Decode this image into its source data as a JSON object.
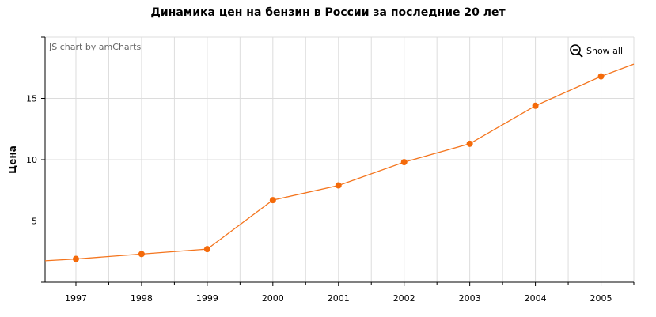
{
  "chart_data": {
    "type": "line",
    "title": "Динамика цен на бензин в России за последние 20 лет",
    "ylabel": "Цена",
    "xlabel": "",
    "categories": [
      "1997",
      "1998",
      "1999",
      "2000",
      "2001",
      "2002",
      "2003",
      "2004",
      "2005"
    ],
    "series": [
      {
        "values": [
          1.9,
          2.3,
          2.7,
          6.7,
          7.9,
          9.8,
          11.3,
          14.4,
          16.8
        ]
      }
    ],
    "x_visible_range": [
      1996.53,
      2005.5
    ],
    "edge_values": {
      "left": 1.75,
      "right": 17.8
    },
    "ylim": [
      0,
      20
    ],
    "yticks": [
      5,
      10,
      15
    ],
    "grid": true,
    "line_color": "#f4751e",
    "marker_color": "#f46a0a",
    "grid_color": "#dcdcdc",
    "credit": "JS chart by amCharts",
    "zoom_button": "Show all"
  }
}
